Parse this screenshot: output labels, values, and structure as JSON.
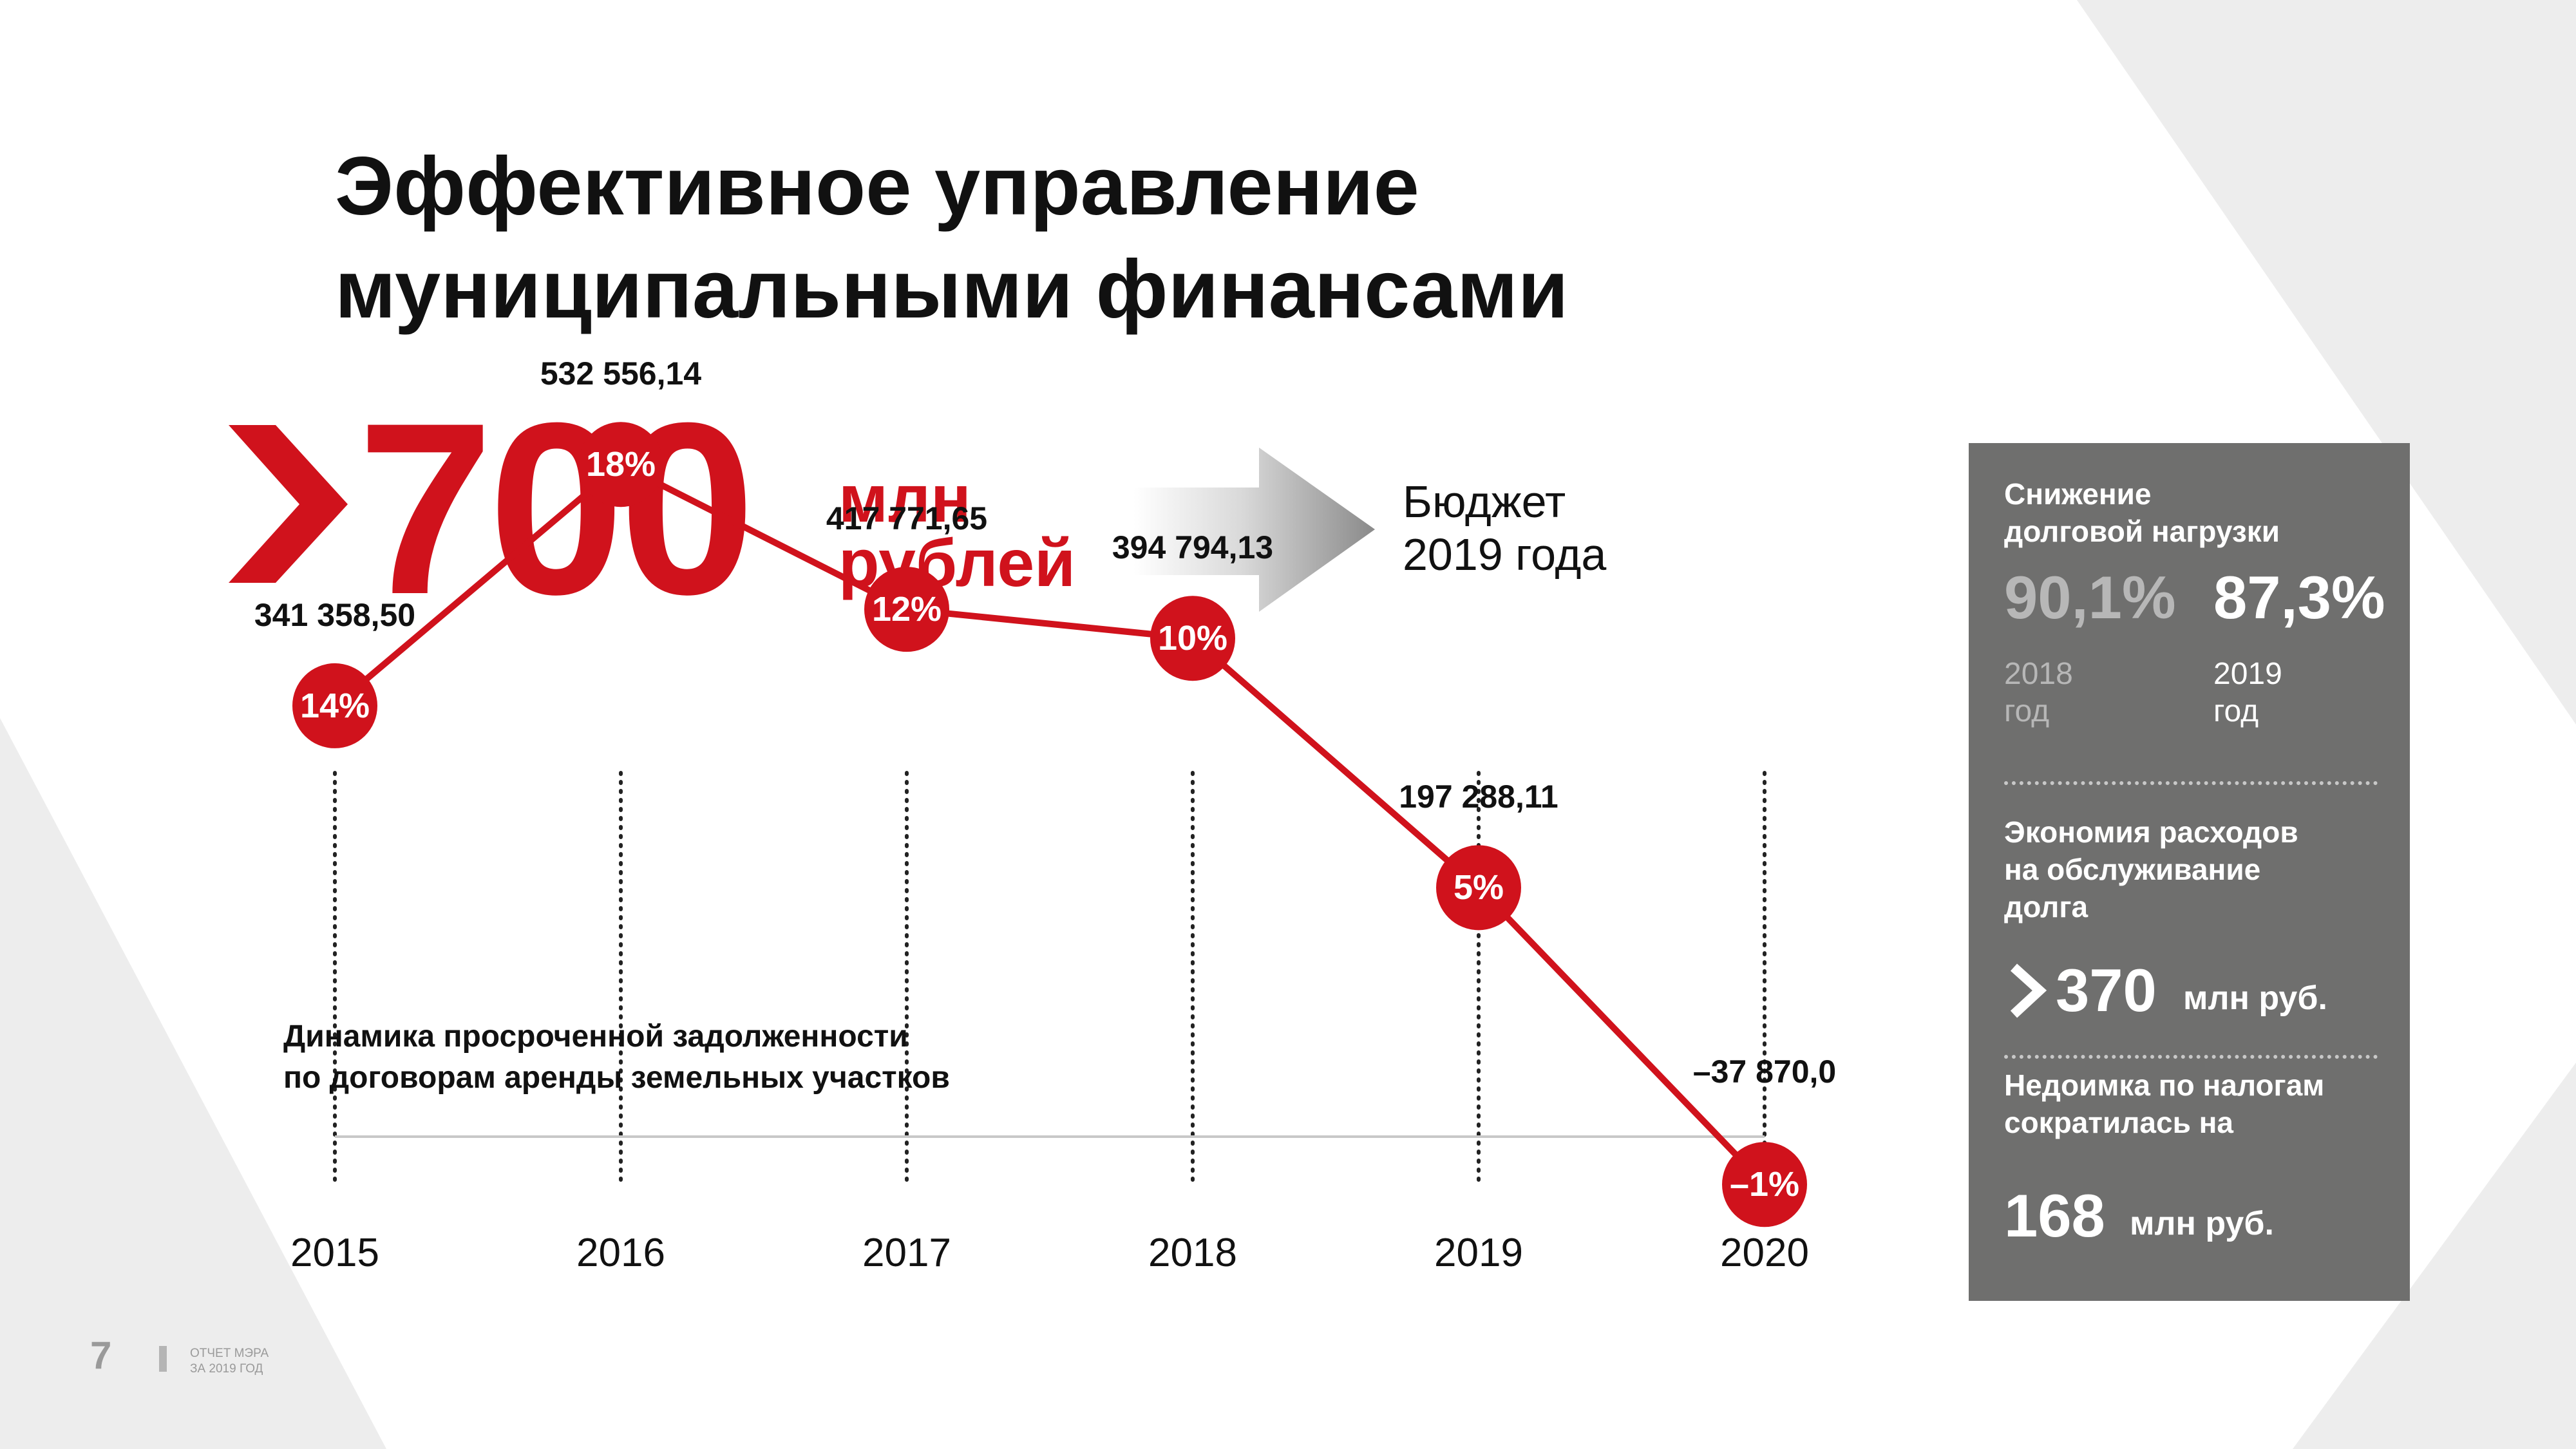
{
  "title_line1": "Эффективное управление",
  "title_line2": "муниципальными финансами",
  "headline": {
    "value": "700",
    "unit_line1": "млн",
    "unit_line2": "рублей",
    "target_line1": "Бюджет",
    "target_line2": "2019 года"
  },
  "chart_caption_line1": "Динамика просроченной задолженности",
  "chart_caption_line2": "по договорам аренды земельных участков",
  "chart_data": {
    "type": "line",
    "title": "Динамика просроченной задолженности по договорам аренды земельных участков",
    "x": [
      "2015",
      "2016",
      "2017",
      "2018",
      "2019",
      "2020"
    ],
    "values": [
      341358.5,
      532556.14,
      417771.65,
      394794.13,
      197288.11,
      -37870.0
    ],
    "value_labels": [
      "341 358,50",
      "532 556,14",
      "417 771,65",
      "394 794,13",
      "197 288,11",
      "–37 870,0"
    ],
    "percent_labels": [
      "14%",
      "18%",
      "12%",
      "10%",
      "5%",
      "–1%"
    ],
    "percent_values": [
      14,
      18,
      12,
      10,
      5,
      -1
    ],
    "colors": {
      "line": "#d0121c",
      "marker": "#d0121c"
    }
  },
  "panel": {
    "section1_line1": "Снижение",
    "section1_line2": "долговой нагрузки",
    "value_2018": "90,1%",
    "value_2019": "87,3%",
    "label_2018_line1": "2018",
    "label_2018_line2": "год",
    "label_2019_line1": "2019",
    "label_2019_line2": "год",
    "section2_line1": "Экономия расходов",
    "section2_line2": "на обслуживание",
    "section2_line3": "долга",
    "savings_value": "370",
    "savings_unit": "млн руб.",
    "section3_line1": "Недоимка по налогам",
    "section3_line2": "сократилась на",
    "arrears_value": "168",
    "arrears_unit": "млн руб."
  },
  "footer": {
    "page_number": "7",
    "text_line1": "ОТЧЕТ МЭРА",
    "text_line2": "ЗА 2019 ГОД"
  },
  "colors": {
    "accent": "#d0121c",
    "panel": "#6f6f6e"
  }
}
